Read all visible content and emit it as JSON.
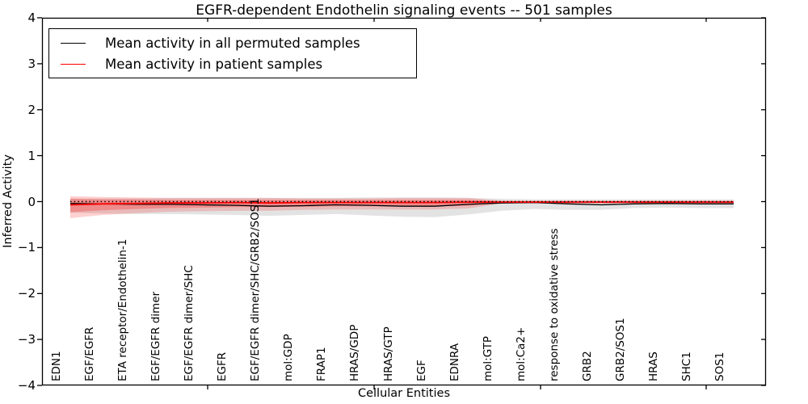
{
  "figure": {
    "background": "#ffffff"
  },
  "chart_data": {
    "type": "line",
    "title": "EGFR-dependent Endothelin signaling events -- 501 samples",
    "xlabel": "Cellular Entities",
    "ylabel": "Inferred Activity",
    "ylim": [
      -4,
      4
    ],
    "yticks": [
      4,
      3,
      2,
      1,
      0,
      -1,
      -2,
      -3,
      -4
    ],
    "ytick_labels": [
      "4",
      "3",
      "2",
      "1",
      "0",
      "−1",
      "−2",
      "−3",
      "−4"
    ],
    "grid": false,
    "legend_position": "upper left",
    "categories": [
      "EDN1",
      "EGF/EGFR",
      "ETA receptor/Endothelin-1",
      "EGF/EGFR dimer",
      "EGF/EGFR dimer/SHC",
      "EGFR",
      "EGF/EGFR dimer/SHC/GRB2/SOS1",
      "mol:GDP",
      "FRAP1",
      "HRAS/GDP",
      "HRAS/GTP",
      "EGF",
      "EDNRA",
      "mol:GTP",
      "mol:Ca2+",
      "response to oxidative stress",
      "GRB2",
      "GRB2/SOS1",
      "HRAS",
      "SHC1",
      "SOS1"
    ],
    "series": [
      {
        "name": "Mean activity in all permuted samples",
        "color": "#000000",
        "values": [
          -0.04,
          -0.05,
          -0.06,
          -0.06,
          -0.07,
          -0.08,
          -0.1,
          -0.09,
          -0.07,
          -0.08,
          -0.1,
          -0.1,
          -0.06,
          -0.03,
          -0.02,
          -0.05,
          -0.07,
          -0.05,
          -0.04,
          -0.05,
          -0.05
        ]
      },
      {
        "name": "Mean activity in patient samples",
        "color": "#ff0000",
        "values": [
          -0.07,
          -0.05,
          -0.04,
          -0.03,
          -0.03,
          -0.02,
          -0.03,
          -0.02,
          -0.02,
          -0.02,
          -0.02,
          -0.02,
          -0.01,
          -0.01,
          -0.01,
          -0.01,
          -0.01,
          -0.01,
          -0.01,
          -0.01,
          -0.01
        ]
      }
    ],
    "bands": [
      {
        "name": "permuted-std-band",
        "color": "rgba(0,0,0,0.11)",
        "upper": [
          0.07,
          0.07,
          0.07,
          0.08,
          0.08,
          0.08,
          0.08,
          0.08,
          0.08,
          0.09,
          0.09,
          0.09,
          0.08,
          0.06,
          0.05,
          0.05,
          0.05,
          0.05,
          0.05,
          0.05,
          0.05
        ],
        "lower": [
          -0.24,
          -0.26,
          -0.27,
          -0.27,
          -0.28,
          -0.29,
          -0.31,
          -0.29,
          -0.27,
          -0.3,
          -0.33,
          -0.34,
          -0.28,
          -0.2,
          -0.16,
          -0.18,
          -0.18,
          -0.14,
          -0.13,
          -0.14,
          -0.14
        ]
      },
      {
        "name": "patient-outer-band",
        "color": "rgba(255,0,0,0.18)",
        "upper": [
          0.12,
          0.1,
          0.09,
          0.08,
          0.08,
          0.08,
          0.08,
          0.07,
          0.07,
          0.07,
          0.08,
          0.08,
          0.08,
          0.02,
          0.02,
          0.02,
          0.02,
          0.02,
          0.02,
          0.02,
          0.02
        ],
        "lower": [
          -0.36,
          -0.29,
          -0.25,
          -0.22,
          -0.21,
          -0.2,
          -0.2,
          -0.18,
          -0.17,
          -0.17,
          -0.17,
          -0.17,
          -0.15,
          -0.04,
          -0.04,
          -0.04,
          -0.04,
          -0.04,
          -0.04,
          -0.04,
          -0.04
        ]
      },
      {
        "name": "patient-inner-band",
        "color": "rgba(255,0,0,0.25)",
        "upper": [
          0.06,
          0.05,
          0.05,
          0.04,
          0.04,
          0.04,
          0.04,
          0.04,
          0.04,
          0.04,
          0.04,
          0.04,
          0.04,
          0.01,
          0.01,
          0.01,
          0.01,
          0.01,
          0.01,
          0.01,
          0.01
        ],
        "lower": [
          -0.23,
          -0.19,
          -0.16,
          -0.14,
          -0.13,
          -0.12,
          -0.12,
          -0.11,
          -0.1,
          -0.1,
          -0.1,
          -0.1,
          -0.09,
          -0.03,
          -0.03,
          -0.03,
          -0.03,
          -0.03,
          -0.03,
          -0.03,
          -0.03
        ]
      }
    ],
    "zero_line": {
      "style": "dotted",
      "color": "#000000",
      "y": 0
    }
  }
}
